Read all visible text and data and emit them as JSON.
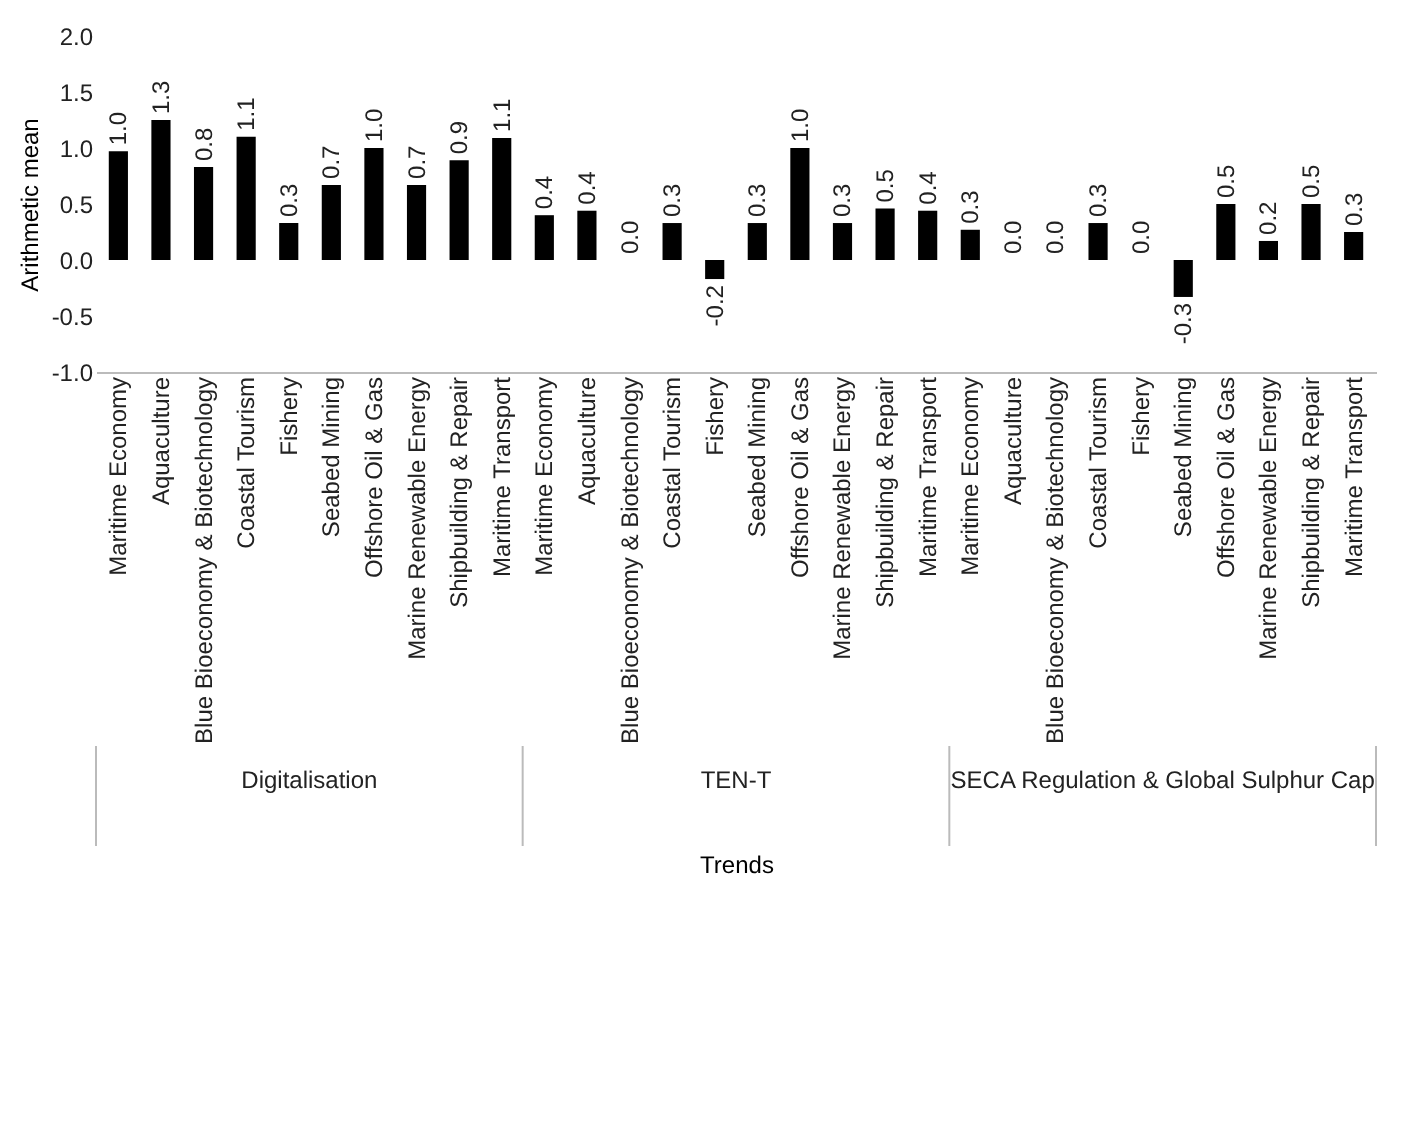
{
  "chart_data": {
    "type": "bar",
    "ylabel": "Arithmetic mean",
    "xlabel": "Trends",
    "categories": [
      "Maritime Economy",
      "Aquaculture",
      "Blue Bioeconomy & Biotechnology",
      "Coastal Tourism",
      "Fishery",
      "Seabed Mining",
      "Offshore Oil & Gas",
      "Marine Renewable Energy",
      "Shipbuilding & Repair",
      "Maritime Transport",
      "Maritime Economy",
      "Aquaculture",
      "Blue Bioeconomy & Biotechnology",
      "Coastal Tourism",
      "Fishery",
      "Seabed Mining",
      "Offshore Oil & Gas",
      "Marine Renewable Energy",
      "Shipbuilding & Repair",
      "Maritime Transport",
      "Maritime Economy",
      "Aquaculture",
      "Blue Bioeconomy & Biotechnology",
      "Coastal Tourism",
      "Fishery",
      "Seabed Mining",
      "Offshore Oil & Gas",
      "Marine Renewable Energy",
      "Shipbuilding & Repair",
      "Maritime Transport"
    ],
    "values": [
      0.97,
      1.25,
      0.83,
      1.1,
      0.33,
      0.67,
      1.0,
      0.67,
      0.89,
      1.09,
      0.4,
      0.44,
      0.0,
      0.33,
      -0.17,
      0.33,
      1.0,
      0.33,
      0.46,
      0.44,
      0.27,
      0.0,
      0.0,
      0.33,
      0.0,
      -0.33,
      0.5,
      0.17,
      0.5,
      0.25
    ],
    "value_labels": [
      "1.0",
      "1.3",
      "0.8",
      "1.1",
      "0.3",
      "0.7",
      "1.0",
      "0.7",
      "0.9",
      "1.1",
      "0.4",
      "0.4",
      "0.0",
      "0.3",
      "-0.2",
      "0.3",
      "1.0",
      "0.3",
      "0.5",
      "0.4",
      "0.3",
      "0.0",
      "0.0",
      "0.3",
      "0.0",
      "-0.3",
      "0.5",
      "0.2",
      "0.5",
      "0.3"
    ],
    "color": "#000000",
    "ylim": [
      -1.0,
      2.0
    ],
    "yticks": [
      {
        "value": -1,
        "label": "-1.0"
      },
      {
        "value": -0.5,
        "label": "-0.5"
      },
      {
        "value": 0,
        "label": "0.0"
      },
      {
        "value": 0.5,
        "label": "0.5"
      },
      {
        "value": 1,
        "label": "1.0"
      },
      {
        "value": 1.5,
        "label": "1.5"
      },
      {
        "value": 2,
        "label": "2.0"
      }
    ],
    "annotations": [
      "Digitalisation",
      "TEN-T",
      "SECA Regulation & Global Sulphur Cap"
    ]
  }
}
